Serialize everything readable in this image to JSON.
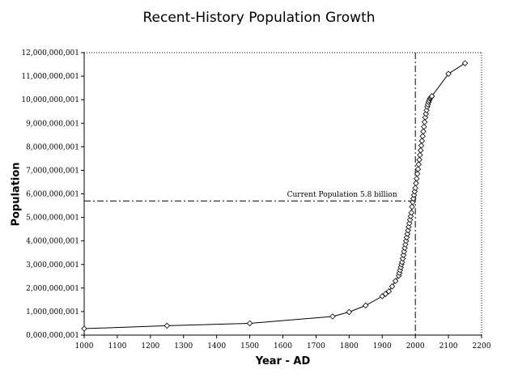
{
  "chart_data": {
    "type": "line",
    "title": "Recent-History Population Growth",
    "xlabel": "Year - AD",
    "ylabel": "Population",
    "xlim": [
      1000,
      2200
    ],
    "ylim": [
      1,
      12000000001
    ],
    "x_ticks": [
      1000,
      1100,
      1200,
      1300,
      1400,
      1500,
      1600,
      1700,
      1800,
      1900,
      2000,
      2100,
      2200
    ],
    "y_ticks": [
      "0,000,000,001",
      "1,000,000,001",
      "2,000,000,001",
      "3,000,000,001",
      "4,000,000,001",
      "5,000,000,001",
      "6,000,000,001",
      "7,000,000,001",
      "8,000,000,001",
      "9,000,000,001",
      "10,000,000,001",
      "11,000,000,001",
      "12,000,000,001"
    ],
    "y_tick_values": [
      1,
      1000000001,
      2000000001,
      3000000001,
      4000000001,
      5000000001,
      6000000001,
      7000000001,
      8000000001,
      9000000001,
      10000000001,
      11000000001,
      12000000001
    ],
    "series": [
      {
        "marker": "diamond",
        "x": [
          1000,
          1250,
          1500,
          1750,
          1800,
          1850,
          1900,
          1910,
          1920,
          1930,
          1940,
          1950,
          1952,
          1954,
          1956,
          1958,
          1960,
          1962,
          1964,
          1966,
          1968,
          1970,
          1972,
          1974,
          1976,
          1978,
          1980,
          1982,
          1984,
          1986,
          1988,
          1990,
          1992,
          1994,
          1996,
          1998,
          2000,
          2002,
          2004,
          2006,
          2008,
          2010,
          2012,
          2014,
          2016,
          2018,
          2020,
          2022,
          2024,
          2026,
          2028,
          2030,
          2032,
          2034,
          2036,
          2038,
          2040,
          2042,
          2044,
          2046,
          2048,
          2050,
          2100,
          2150
        ],
        "y": [
          275000000,
          400000000,
          500000000,
          790000000,
          980000000,
          1260000000,
          1650000000,
          1750000000,
          1860000000,
          2070000000,
          2300000000,
          2520000000,
          2640000000,
          2760000000,
          2880000000,
          3000000000,
          3100000000,
          3250000000,
          3400000000,
          3550000000,
          3700000000,
          3850000000,
          4000000000,
          4150000000,
          4300000000,
          4450000000,
          4600000000,
          4750000000,
          4900000000,
          5050000000,
          5200000000,
          5450000000,
          5650000000,
          5800000000,
          5950000000,
          6100000000,
          6250000000,
          6450000000,
          6650000000,
          6850000000,
          7050000000,
          7250000000,
          7450000000,
          7650000000,
          7850000000,
          8050000000,
          8250000000,
          8450000000,
          8650000000,
          8850000000,
          9050000000,
          9250000000,
          9400000000,
          9550000000,
          9700000000,
          9800000000,
          9900000000,
          9970000000,
          10040000000,
          10080000000,
          10120000000,
          10150000000,
          11100000000,
          11550000000
        ]
      }
    ],
    "annotations": [
      {
        "text": "Current Population 5.8 billion",
        "hline_y": 5700000000,
        "x_from": 1000,
        "x_to": 2000
      }
    ],
    "reference_lines": [
      {
        "orientation": "vertical",
        "x": 2000,
        "style": "dash-dot"
      },
      {
        "orientation": "horizontal",
        "y": 5700000000,
        "style": "dash-dot"
      }
    ],
    "grid": false,
    "legend": "none"
  }
}
